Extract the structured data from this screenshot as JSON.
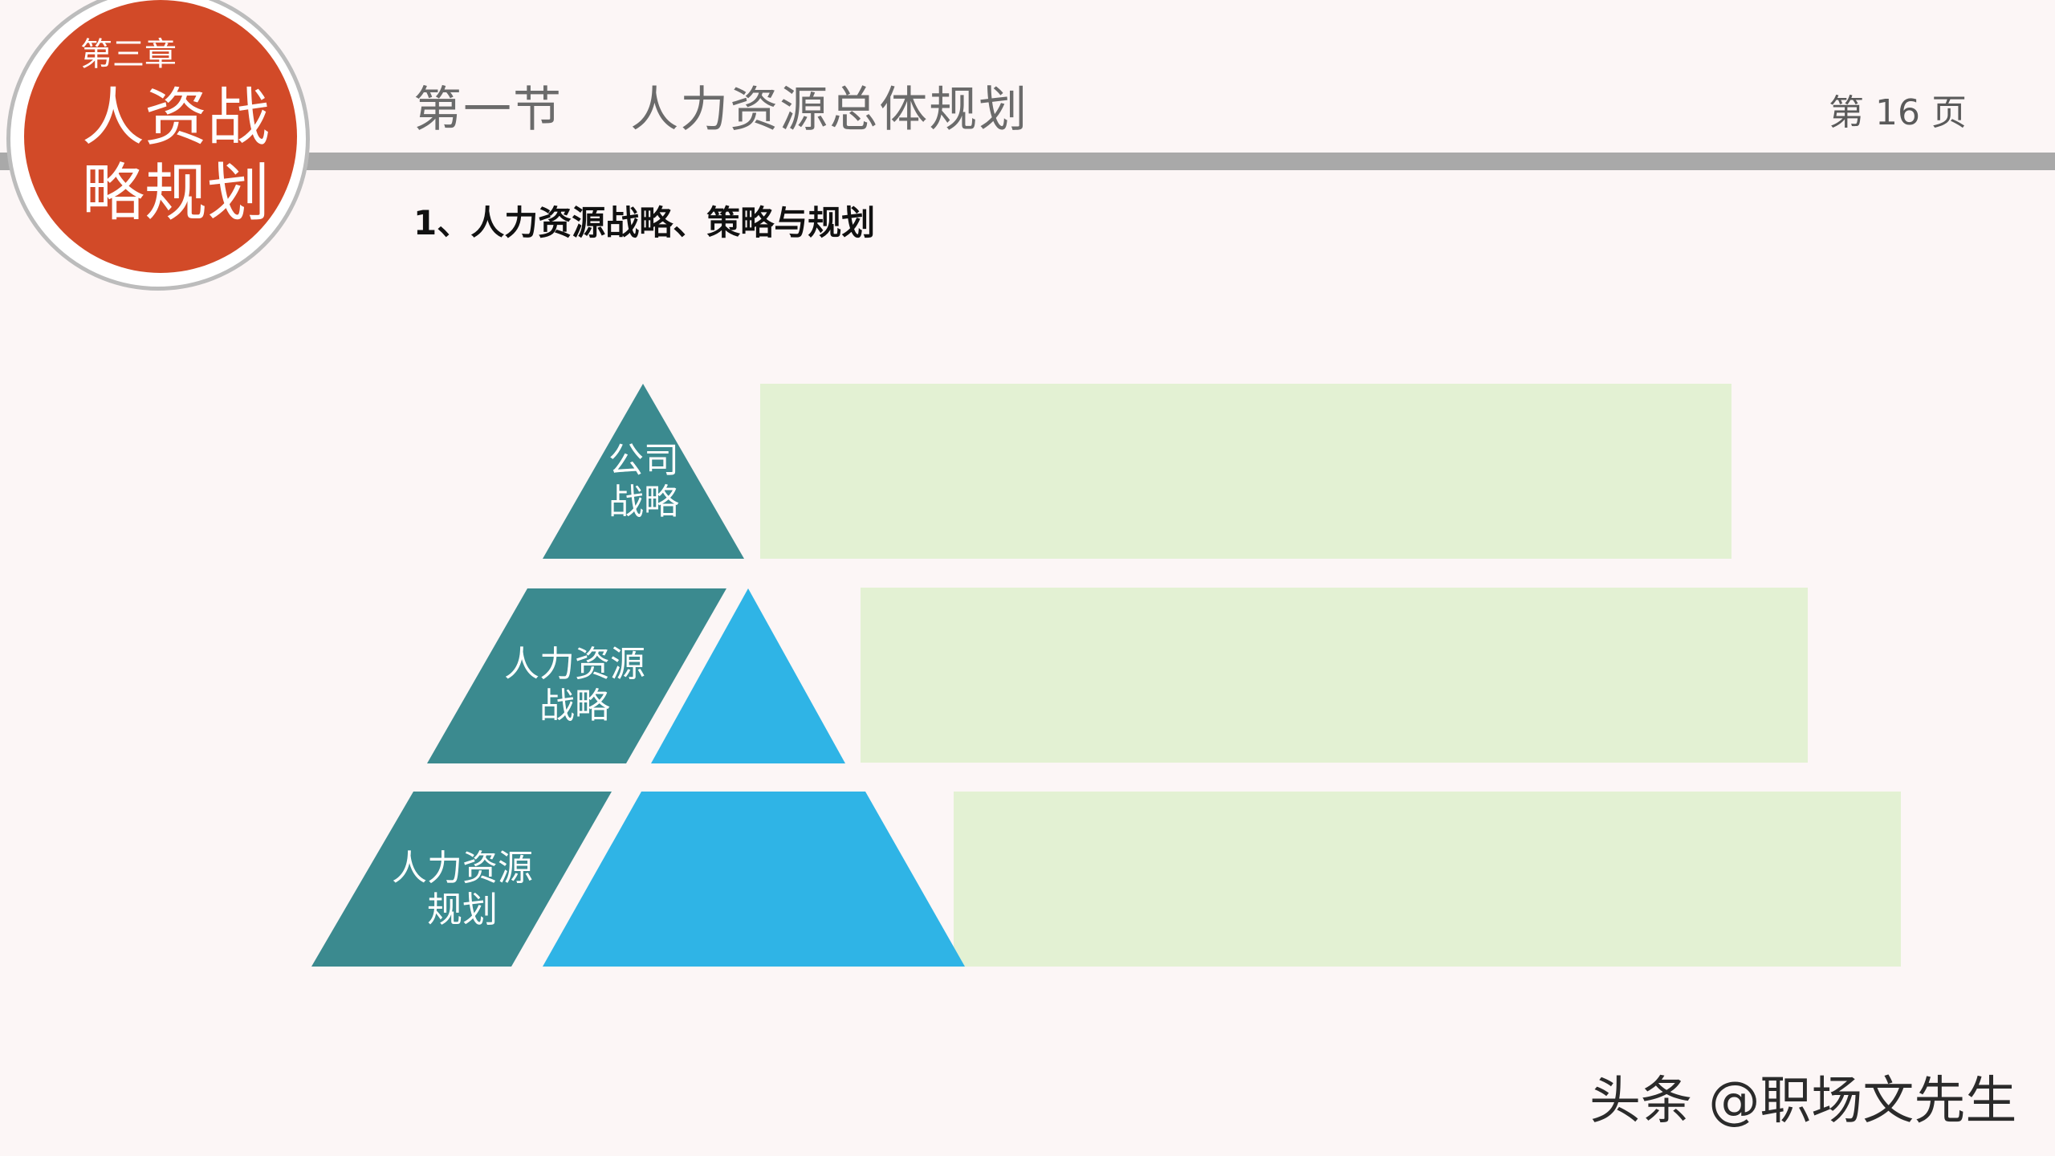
{
  "header": {
    "chapter": "第三章",
    "chapter_title": "人资战略规划",
    "section_title": "第一节    人力资源总体规划",
    "page_number": "第 16 页"
  },
  "content": {
    "subtitle": "1、人力资源战略、策略与规划",
    "pyramid_levels": [
      {
        "label": "公司战略"
      },
      {
        "label": "人力资源战略"
      },
      {
        "label": "人力资源规划"
      }
    ]
  },
  "watermark": "头条 @职场文先生",
  "colors": {
    "badge": "#d24a28",
    "teal": "#3b8a8f",
    "blue": "#2fb4e6",
    "green": "#e3f1d3",
    "bar": "#a9a9a9",
    "background": "#fcf6f6"
  }
}
